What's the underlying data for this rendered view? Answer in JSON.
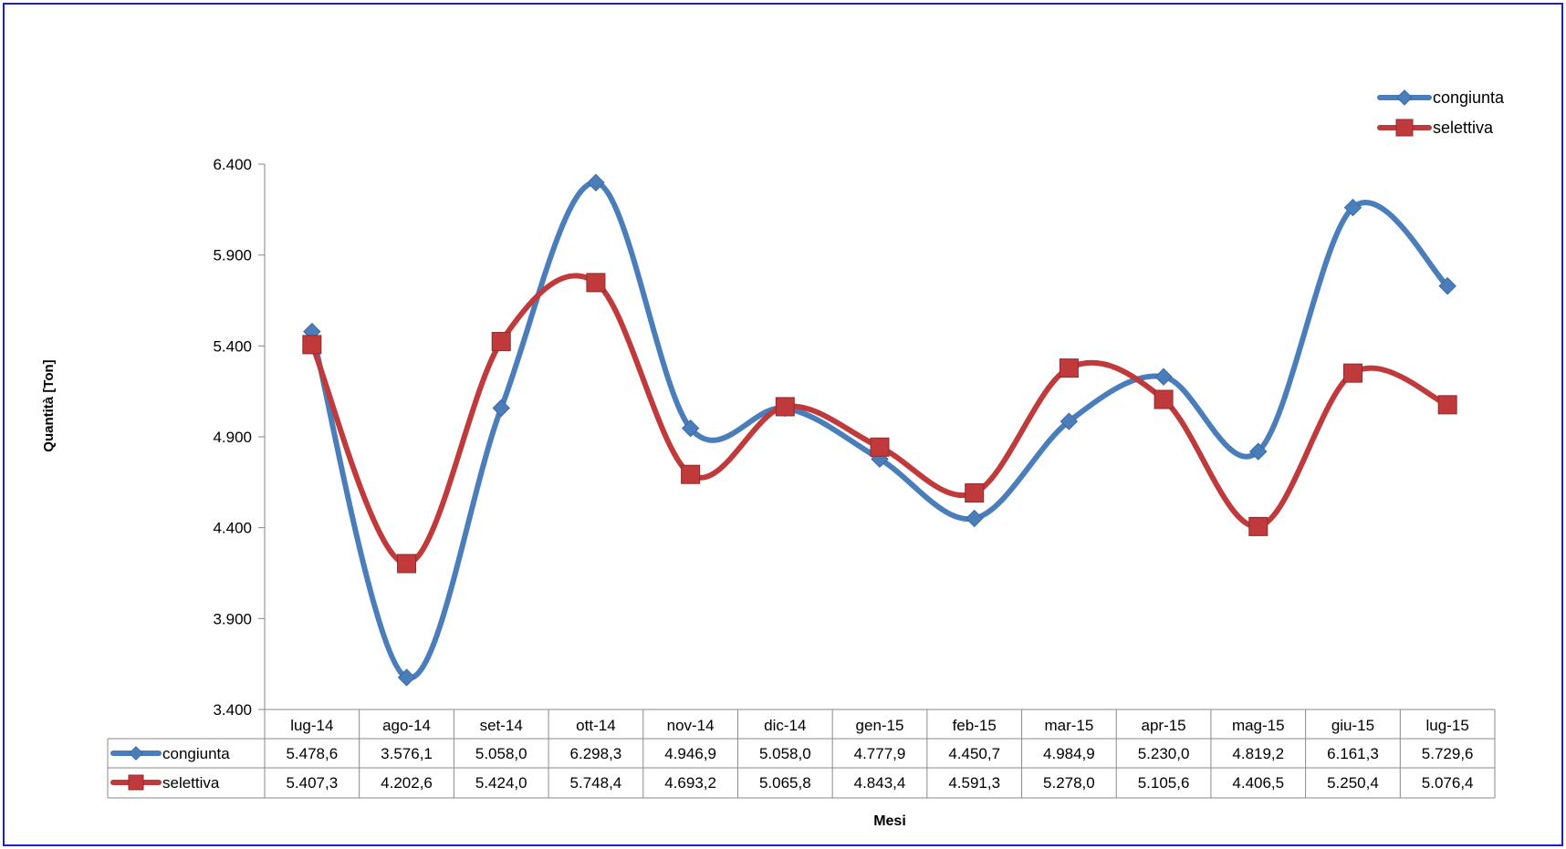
{
  "colors": {
    "border": "#1f1fd6",
    "congiunta": "#4a7ebb",
    "selettiva": "#c0393b",
    "axis": "#868686"
  },
  "chart_data": {
    "type": "line",
    "title": "",
    "xlabel": "Mesi",
    "ylabel": "Quantità [Ton]",
    "ylim": [
      3400,
      6400
    ],
    "y_ticks": [
      "3.400",
      "3.900",
      "4.400",
      "4.900",
      "5.400",
      "5.900",
      "6.400"
    ],
    "y_tick_values": [
      3400,
      3900,
      4400,
      4900,
      5400,
      5900,
      6400
    ],
    "smoothed": true,
    "grid": false,
    "legend_position": "top-right",
    "categories": [
      "lug-14",
      "ago-14",
      "set-14",
      "ott-14",
      "nov-14",
      "dic-14",
      "gen-15",
      "feb-15",
      "mar-15",
      "apr-15",
      "mag-15",
      "giu-15",
      "lug-15"
    ],
    "series": [
      {
        "name": "congiunta",
        "marker": "diamond",
        "values": [
          5478.6,
          3576.1,
          5058.0,
          6298.3,
          4946.9,
          5058.0,
          4777.9,
          4450.7,
          4984.9,
          5230.0,
          4819.2,
          6161.3,
          5729.6
        ],
        "labels": [
          "5.478,6",
          "3.576,1",
          "5.058,0",
          "6.298,3",
          "4.946,9",
          "5.058,0",
          "4.777,9",
          "4.450,7",
          "4.984,9",
          "5.230,0",
          "4.819,2",
          "6.161,3",
          "5.729,6"
        ]
      },
      {
        "name": "selettiva",
        "marker": "square",
        "values": [
          5407.3,
          4202.6,
          5424.0,
          5748.4,
          4693.2,
          5065.8,
          4843.4,
          4591.3,
          5278.0,
          5105.6,
          4406.5,
          5250.4,
          5076.4
        ],
        "labels": [
          "5.407,3",
          "4.202,6",
          "5.424,0",
          "5.748,4",
          "4.693,2",
          "5.065,8",
          "4.843,4",
          "4.591,3",
          "5.278,0",
          "5.105,6",
          "4.406,5",
          "5.250,4",
          "5.076,4"
        ]
      }
    ]
  }
}
